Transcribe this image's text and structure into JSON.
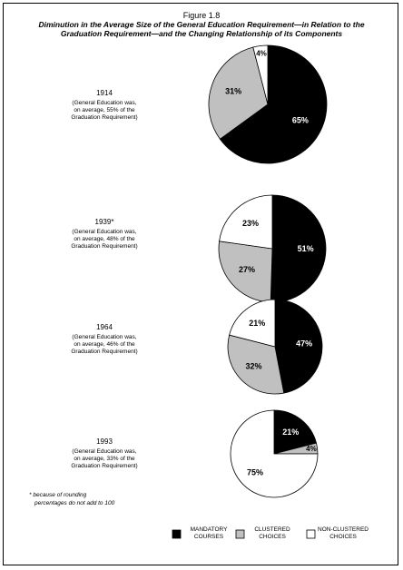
{
  "figure_title": "Figure 1.8",
  "subtitle": "Diminution in the Average Size of the General Education Requirement—in Relation to the Graduation Requirement—and the Changing Relationship of its Components",
  "footnote": [
    "* because of rounding",
    "percentages do not add to 100"
  ],
  "chart_data": [
    {
      "type": "pie",
      "title": "1914",
      "notes": [
        "(General Education was,",
        "on average, 55% of the",
        "Graduation Requirement)"
      ],
      "categories": [
        "MANDATORY COURSES",
        "CLUSTERED CHOICES",
        "NON-CLUSTERED CHOICES"
      ],
      "colors": [
        "#000000",
        "#c0c0c0",
        "#ffffff"
      ],
      "values": [
        65,
        31,
        4
      ],
      "value_labels": [
        "65%",
        "31%",
        "4%"
      ]
    },
    {
      "type": "pie",
      "title": "1939*",
      "notes": [
        "(General Education was,",
        "on average, 48% of the",
        "Graduation Requirement)"
      ],
      "categories": [
        "MANDATORY COURSES",
        "CLUSTERED CHOICES",
        "NON-CLUSTERED CHOICES"
      ],
      "colors": [
        "#000000",
        "#c0c0c0",
        "#ffffff"
      ],
      "values": [
        51,
        27,
        23
      ],
      "value_labels": [
        "51%",
        "27%",
        "23%"
      ]
    },
    {
      "type": "pie",
      "title": "1964",
      "notes": [
        "(General Education was,",
        "on average, 46% of the",
        "Graduation Requirement)"
      ],
      "categories": [
        "MANDATORY COURSES",
        "CLUSTERED CHOICES",
        "NON-CLUSTERED CHOICES"
      ],
      "colors": [
        "#000000",
        "#c0c0c0",
        "#ffffff"
      ],
      "values": [
        47,
        32,
        21
      ],
      "value_labels": [
        "47%",
        "32%",
        "21%"
      ]
    },
    {
      "type": "pie",
      "title": "1993",
      "notes": [
        "(General Education was,",
        "on average, 33% of the",
        "Graduation Requirement)"
      ],
      "categories": [
        "MANDATORY COURSES",
        "CLUSTERED CHOICES",
        "NON-CLUSTERED CHOICES"
      ],
      "colors": [
        "#000000",
        "#c0c0c0",
        "#ffffff"
      ],
      "values": [
        21,
        4,
        75
      ],
      "value_labels": [
        "21%",
        "4%",
        "75%"
      ]
    }
  ]
}
